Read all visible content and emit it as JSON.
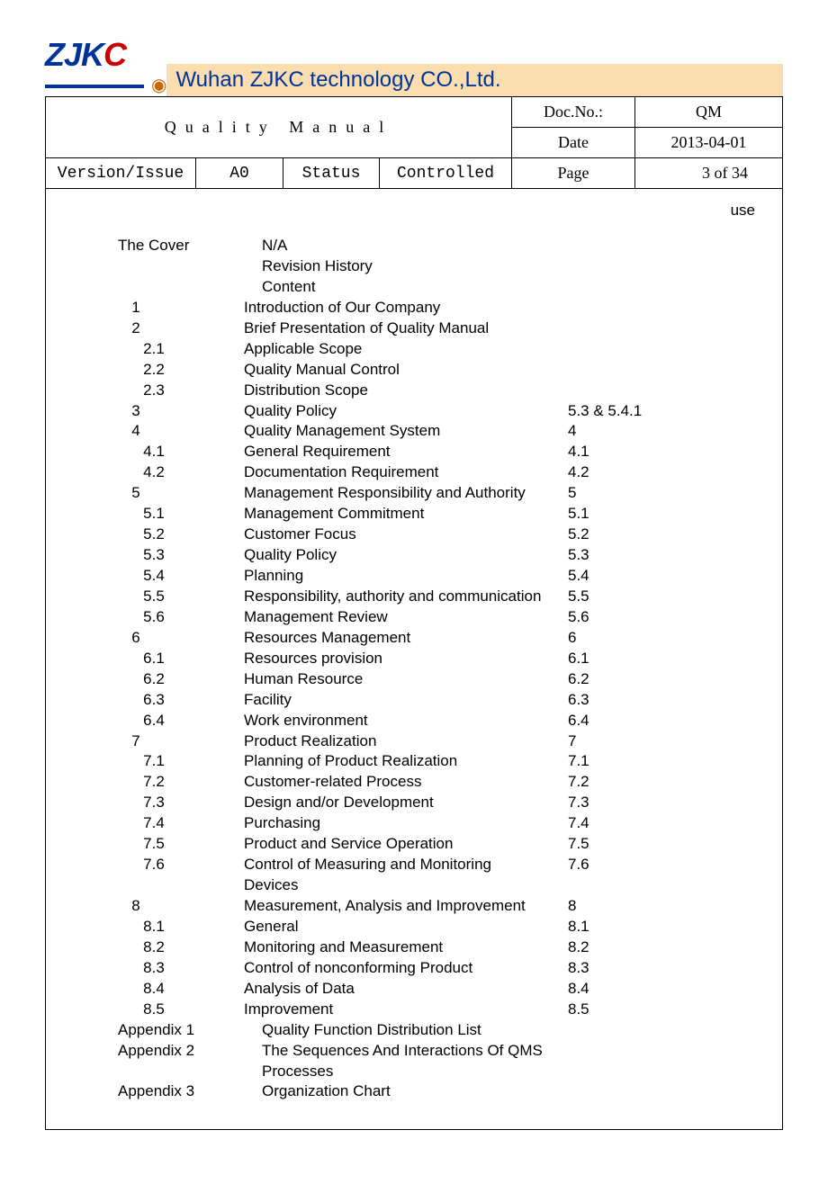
{
  "logo_text": "ZJK",
  "logo_last": "C",
  "company": "Wuhan ZJKC technology CO.,Ltd.",
  "title": "Quality Manual",
  "labels": {
    "docno": "Doc.No.:",
    "date": "Date",
    "version": "Version/Issue",
    "status": "Status",
    "page": "Page"
  },
  "values": {
    "docno": "QM",
    "date": "2013-04-01",
    "version": "A0",
    "status": "Controlled",
    "page": "3 of 34"
  },
  "use": "use",
  "toc": [
    {
      "num": "The Cover",
      "title": "N/A",
      "ref": "",
      "lvl": 0
    },
    {
      "num": "",
      "title": "Revision History",
      "ref": "",
      "lvl": 0
    },
    {
      "num": "",
      "title": "Content",
      "ref": "",
      "lvl": 0
    },
    {
      "num": "1",
      "title": "Introduction of Our Company",
      "ref": "",
      "lvl": 1
    },
    {
      "num": "2",
      "title": "Brief Presentation of Quality Manual",
      "ref": "",
      "lvl": 1
    },
    {
      "num": "2.1",
      "title": "Applicable Scope",
      "ref": "",
      "lvl": 2
    },
    {
      "num": "2.2",
      "title": "Quality Manual Control",
      "ref": "",
      "lvl": 2
    },
    {
      "num": "2.3",
      "title": "Distribution Scope",
      "ref": "",
      "lvl": 2
    },
    {
      "num": "3",
      "title": "Quality Policy",
      "ref": "5.3 & 5.4.1",
      "lvl": 1
    },
    {
      "num": "4",
      "title": "Quality Management System",
      "ref": "4",
      "lvl": 1
    },
    {
      "num": "4.1",
      "title": "General Requirement",
      "ref": "4.1",
      "lvl": 2
    },
    {
      "num": "4.2",
      "title": "Documentation Requirement",
      "ref": "4.2",
      "lvl": 2
    },
    {
      "num": "5",
      "title": "Management Responsibility and Authority",
      "ref": "5",
      "lvl": 1
    },
    {
      "num": "5.1",
      "title": "Management Commitment",
      "ref": "5.1",
      "lvl": 2
    },
    {
      "num": "5.2",
      "title": "Customer Focus",
      "ref": "5.2",
      "lvl": 2
    },
    {
      "num": "5.3",
      "title": "Quality Policy",
      "ref": "5.3",
      "lvl": 2
    },
    {
      "num": "5.4",
      "title": "Planning",
      "ref": "5.4",
      "lvl": 2
    },
    {
      "num": "5.5",
      "title": "Responsibility, authority and communication",
      "ref": "5.5",
      "lvl": 2
    },
    {
      "num": "5.6",
      "title": "Management Review",
      "ref": "5.6",
      "lvl": 2
    },
    {
      "num": "6",
      "title": "Resources Management",
      "ref": "6",
      "lvl": 1
    },
    {
      "num": "6.1",
      "title": "Resources provision",
      "ref": "6.1",
      "lvl": 2
    },
    {
      "num": "6.2",
      "title": "Human Resource",
      "ref": "6.2",
      "lvl": 2
    },
    {
      "num": "6.3",
      "title": "Facility",
      "ref": "6.3",
      "lvl": 2
    },
    {
      "num": "6.4",
      "title": "Work environment",
      "ref": "6.4",
      "lvl": 2
    },
    {
      "num": "7",
      "title": "Product Realization",
      "ref": "7",
      "lvl": 1
    },
    {
      "num": "7.1",
      "title": "Planning of Product Realization",
      "ref": "7.1",
      "lvl": 2
    },
    {
      "num": "7.2",
      "title": "Customer-related Process",
      "ref": "7.2",
      "lvl": 2
    },
    {
      "num": "7.3",
      "title": "Design and/or Development",
      "ref": "7.3",
      "lvl": 2
    },
    {
      "num": "7.4",
      "title": "Purchasing",
      "ref": "7.4",
      "lvl": 2
    },
    {
      "num": "7.5",
      "title": "Product and Service Operation",
      "ref": "7.5",
      "lvl": 2
    },
    {
      "num": "7.6",
      "title": "Control of Measuring and Monitoring Devices",
      "ref": "7.6",
      "lvl": 2
    },
    {
      "num": "8",
      "title": "Measurement, Analysis and Improvement",
      "ref": "8",
      "lvl": 1
    },
    {
      "num": "8.1",
      "title": "General",
      "ref": "8.1",
      "lvl": 2
    },
    {
      "num": "8.2",
      "title": "Monitoring and Measurement",
      "ref": "8.2",
      "lvl": 2
    },
    {
      "num": "8.3",
      "title": "Control of nonconforming Product",
      "ref": "8.3",
      "lvl": 2
    },
    {
      "num": "8.4",
      "title": "Analysis of Data",
      "ref": "8.4",
      "lvl": 2
    },
    {
      "num": "8.5",
      "title": "Improvement",
      "ref": "8.5",
      "lvl": 2
    },
    {
      "num": "Appendix 1",
      "title": "Quality Function Distribution List",
      "ref": "",
      "lvl": 0
    },
    {
      "num": "Appendix 2",
      "title": "The Sequences And Interactions Of QMS Processes",
      "ref": "",
      "lvl": 0
    },
    {
      "num": "Appendix 3",
      "title": "Organization Chart",
      "ref": "",
      "lvl": 0
    }
  ]
}
